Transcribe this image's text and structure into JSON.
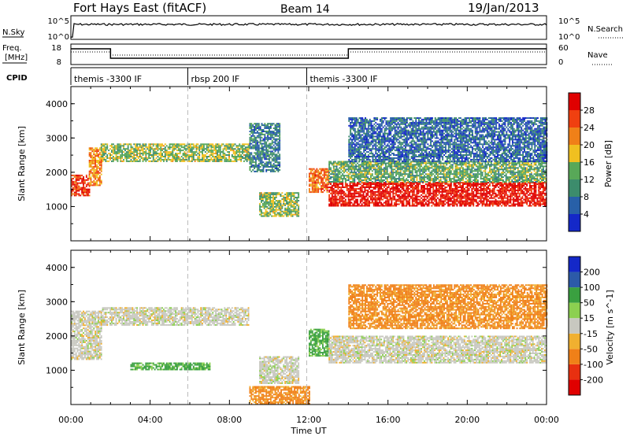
{
  "header": {
    "station": "Fort Hays East (fitACF)",
    "beam": "Beam 14",
    "date": "19/Jan/2013"
  },
  "time_axis": {
    "label": "Time UT",
    "ticks": [
      "00:00",
      "04:00",
      "08:00",
      "12:00",
      "16:00",
      "20:00",
      "00:00"
    ],
    "range_hours": [
      0,
      24
    ]
  },
  "noise_panel": {
    "left_label": "N.Sky",
    "right_label": "N.Search",
    "left_ticks": [
      "10^5",
      "10^0"
    ],
    "right_ticks": [
      "10^5",
      "10^0"
    ]
  },
  "freq_panel": {
    "left_label_1": "Freq.",
    "left_label_2": "[MHz]",
    "right_label": "Nave",
    "left_ticks": [
      "18",
      "8"
    ],
    "right_ticks": [
      "60",
      "0"
    ]
  },
  "cpid": {
    "label": "CPID",
    "segments": [
      {
        "name": "themis -3300 IF",
        "start_h": 0,
        "end_h": 5.9
      },
      {
        "name": "rbsp 200 IF",
        "start_h": 5.9,
        "end_h": 11.9
      },
      {
        "name": "themis -3300 IF",
        "start_h": 11.9,
        "end_h": 24
      }
    ]
  },
  "power_panel": {
    "ylabel": "Slant Range [km]",
    "yticks": [
      "1000",
      "2000",
      "3000",
      "4000"
    ],
    "colorbar_label": "Power [dB]",
    "colorbar_ticks": [
      "4",
      "8",
      "12",
      "16",
      "20",
      "24",
      "28"
    ],
    "colors": [
      "#1428c8",
      "#2860a8",
      "#3c8c6c",
      "#58a858",
      "#f0c020",
      "#f08018",
      "#f04010",
      "#e00000"
    ]
  },
  "velocity_panel": {
    "ylabel": "Slant Range [km]",
    "yticks": [
      "1000",
      "2000",
      "3000",
      "4000"
    ],
    "colorbar_label": "Velocity [m s^-1]",
    "colorbar_ticks": [
      "200",
      "100",
      "50",
      "15",
      "-15",
      "-50",
      "-100",
      "-200"
    ],
    "colors": [
      "#1428c8",
      "#2c5aa8",
      "#3aa040",
      "#8cd050",
      "#c8c8c0",
      "#f0b030",
      "#f08018",
      "#e83010",
      "#e00000"
    ]
  },
  "chart_data": [
    {
      "type": "heatmap",
      "title": "Fort Hays East (fitACF)  Beam 14  19/Jan/2013",
      "xlabel": "Time UT",
      "ylabel": "Slant Range [km]",
      "xlim": [
        0,
        24
      ],
      "ylim": [
        0,
        4500
      ],
      "colorbar": {
        "label": "Power [dB]",
        "range": [
          0,
          30
        ]
      },
      "bands": [
        {
          "t": [
            0.0,
            0.9
          ],
          "r": [
            1300,
            1900
          ],
          "value": 26
        },
        {
          "t": [
            0.9,
            1.5
          ],
          "r": [
            1600,
            2700
          ],
          "value": 20
        },
        {
          "t": [
            1.5,
            9.0
          ],
          "r": [
            2300,
            2800
          ],
          "value": 14
        },
        {
          "t": [
            9.0,
            10.5
          ],
          "r": [
            2000,
            3400
          ],
          "value": 8
        },
        {
          "t": [
            9.5,
            11.5
          ],
          "r": [
            700,
            1400
          ],
          "value": 14
        },
        {
          "t": [
            12.0,
            13.0
          ],
          "r": [
            1400,
            2100
          ],
          "value": 22
        },
        {
          "t": [
            13.0,
            24.0
          ],
          "r": [
            1000,
            1700
          ],
          "value": 28
        },
        {
          "t": [
            13.0,
            24.0
          ],
          "r": [
            1700,
            2300
          ],
          "value": 12
        },
        {
          "t": [
            14.0,
            24.0
          ],
          "r": [
            2300,
            3600
          ],
          "value": 6
        }
      ]
    },
    {
      "type": "heatmap",
      "title": "Fort Hays East (fitACF)  Beam 14  19/Jan/2013",
      "xlabel": "Time UT",
      "ylabel": "Slant Range [km]",
      "xlim": [
        0,
        24
      ],
      "ylim": [
        0,
        4500
      ],
      "colorbar": {
        "label": "Velocity [m s^-1]",
        "range": [
          -250,
          250
        ]
      },
      "bands": [
        {
          "t": [
            0.0,
            1.5
          ],
          "r": [
            1300,
            2700
          ],
          "value": 0
        },
        {
          "t": [
            1.5,
            9.0
          ],
          "r": [
            2300,
            2800
          ],
          "value": 0
        },
        {
          "t": [
            3.0,
            7.0
          ],
          "r": [
            1000,
            1200
          ],
          "value": 40
        },
        {
          "t": [
            9.5,
            11.5
          ],
          "r": [
            600,
            1400
          ],
          "value": 0
        },
        {
          "t": [
            9.0,
            12.0
          ],
          "r": [
            0,
            500
          ],
          "value": -40
        },
        {
          "t": [
            12.0,
            13.0
          ],
          "r": [
            1400,
            2200
          ],
          "value": 40
        },
        {
          "t": [
            13.0,
            24.0
          ],
          "r": [
            1200,
            2000
          ],
          "value": 0
        },
        {
          "t": [
            14.0,
            24.0
          ],
          "r": [
            2200,
            3500
          ],
          "value": -40
        }
      ]
    }
  ]
}
